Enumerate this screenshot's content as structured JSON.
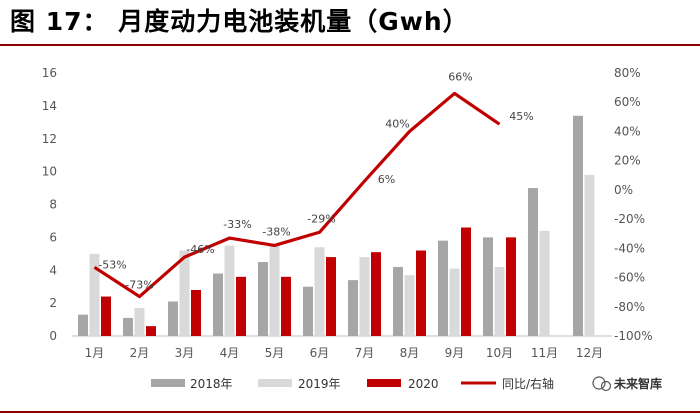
{
  "header": {
    "title": "图 17： 月度动力电池装机量（Gwh）"
  },
  "chart_data": {
    "type": "bar",
    "title": "图 17： 月度动力电池装机量（Gwh）",
    "categories": [
      "1月",
      "2月",
      "3月",
      "4月",
      "5月",
      "6月",
      "7月",
      "8月",
      "9月",
      "10月",
      "11月",
      "12月"
    ],
    "series": [
      {
        "name": "2018年",
        "type": "bar",
        "color": "#a6a6a6",
        "values": [
          1.3,
          1.1,
          2.1,
          3.8,
          4.5,
          3.0,
          3.4,
          4.2,
          5.8,
          6.0,
          9.0,
          13.4
        ]
      },
      {
        "name": "2019年",
        "type": "bar",
        "color": "#d9d9d9",
        "values": [
          5.0,
          1.7,
          5.2,
          5.5,
          5.5,
          5.4,
          4.8,
          3.7,
          4.1,
          4.2,
          6.4,
          9.8
        ]
      },
      {
        "name": "2020",
        "type": "bar",
        "color": "#c00000",
        "values": [
          2.4,
          0.6,
          2.8,
          3.6,
          3.6,
          4.8,
          5.1,
          5.2,
          6.6,
          6.0,
          null,
          null
        ]
      },
      {
        "name": "同比/右轴",
        "type": "line",
        "axis": "right",
        "color": "#c00000",
        "values": [
          -53,
          -73,
          -46,
          -33,
          -38,
          -29,
          6,
          40,
          66,
          45,
          null,
          null
        ],
        "labels": [
          "-53%",
          "-73%",
          "-46%",
          "-33%",
          "-38%",
          "-29%",
          "6%",
          "40%",
          "66%",
          "45%",
          "",
          ""
        ]
      }
    ],
    "y_left": {
      "min": 0,
      "max": 16,
      "step": 2,
      "ticks": [
        "0",
        "2",
        "4",
        "6",
        "8",
        "10",
        "12",
        "14",
        "16"
      ]
    },
    "y_right": {
      "min": -100,
      "max": 80,
      "step": 20,
      "ticks": [
        "-100%",
        "-80%",
        "-60%",
        "-40%",
        "-20%",
        "0%",
        "20%",
        "40%",
        "60%",
        "80%"
      ]
    },
    "legend_position": "bottom"
  },
  "watermark": {
    "text": "未来智库"
  }
}
